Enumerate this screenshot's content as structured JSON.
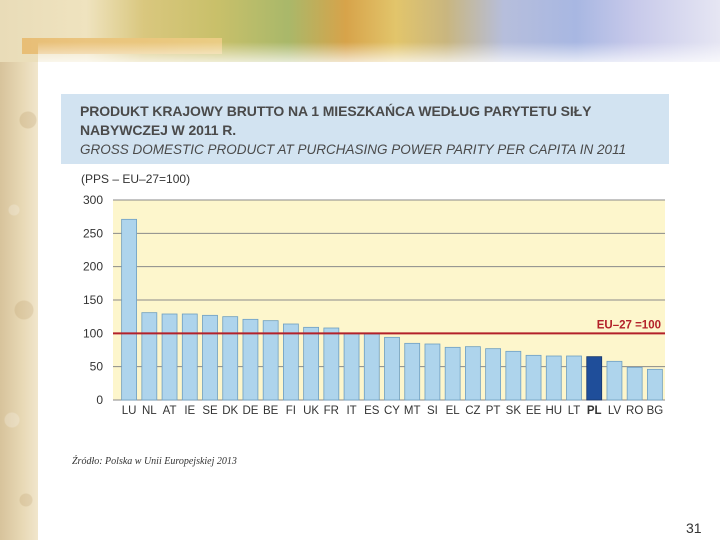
{
  "slide": {
    "source_note": "Źródło: Polska w Unii Europejskiej 2013",
    "number": "31"
  },
  "chart_data": {
    "type": "bar",
    "title": "PRODUKT KRAJOWY BRUTTO NA 1 MIESZKAŃCA WEDŁUG PARYTETU SIŁY NABYWCZEJ W 2011 R.",
    "title_lines": [
      "PRODUKT KRAJOWY BRUTTO NA 1 MIESZKAŃCA WEDŁUG PARYTETU SIŁY",
      "NABYWCZEJ W 2011 R."
    ],
    "subtitle": "GROSS DOMESTIC PRODUCT AT PURCHASING POWER PARITY PER CAPITA IN 2011",
    "ylabel": "(PPS – EU–27=100)",
    "xlabel": "",
    "ylim": [
      0,
      300
    ],
    "yticks": [
      0,
      50,
      100,
      150,
      200,
      250,
      300
    ],
    "grid": true,
    "categories": [
      "LU",
      "NL",
      "AT",
      "IE",
      "SE",
      "DK",
      "DE",
      "BE",
      "FI",
      "UK",
      "FR",
      "IT",
      "ES",
      "CY",
      "MT",
      "SI",
      "EL",
      "CZ",
      "PT",
      "SK",
      "EE",
      "HU",
      "LT",
      "PL",
      "LV",
      "RO",
      "BG"
    ],
    "values": [
      271,
      131,
      129,
      129,
      127,
      125,
      121,
      119,
      114,
      109,
      108,
      100,
      99,
      94,
      85,
      84,
      79,
      80,
      77,
      73,
      67,
      66,
      66,
      65,
      58,
      49,
      46
    ],
    "highlight": "PL",
    "reference_line": {
      "value": 100,
      "label": "EU–27 =100"
    },
    "colors": {
      "bar": "#aed4ec",
      "bar_highlight": "#1f4e9a",
      "reference": "#b3212a",
      "plot_bg": "#fdf6cc",
      "title_bg": "#d2e3f1"
    }
  }
}
